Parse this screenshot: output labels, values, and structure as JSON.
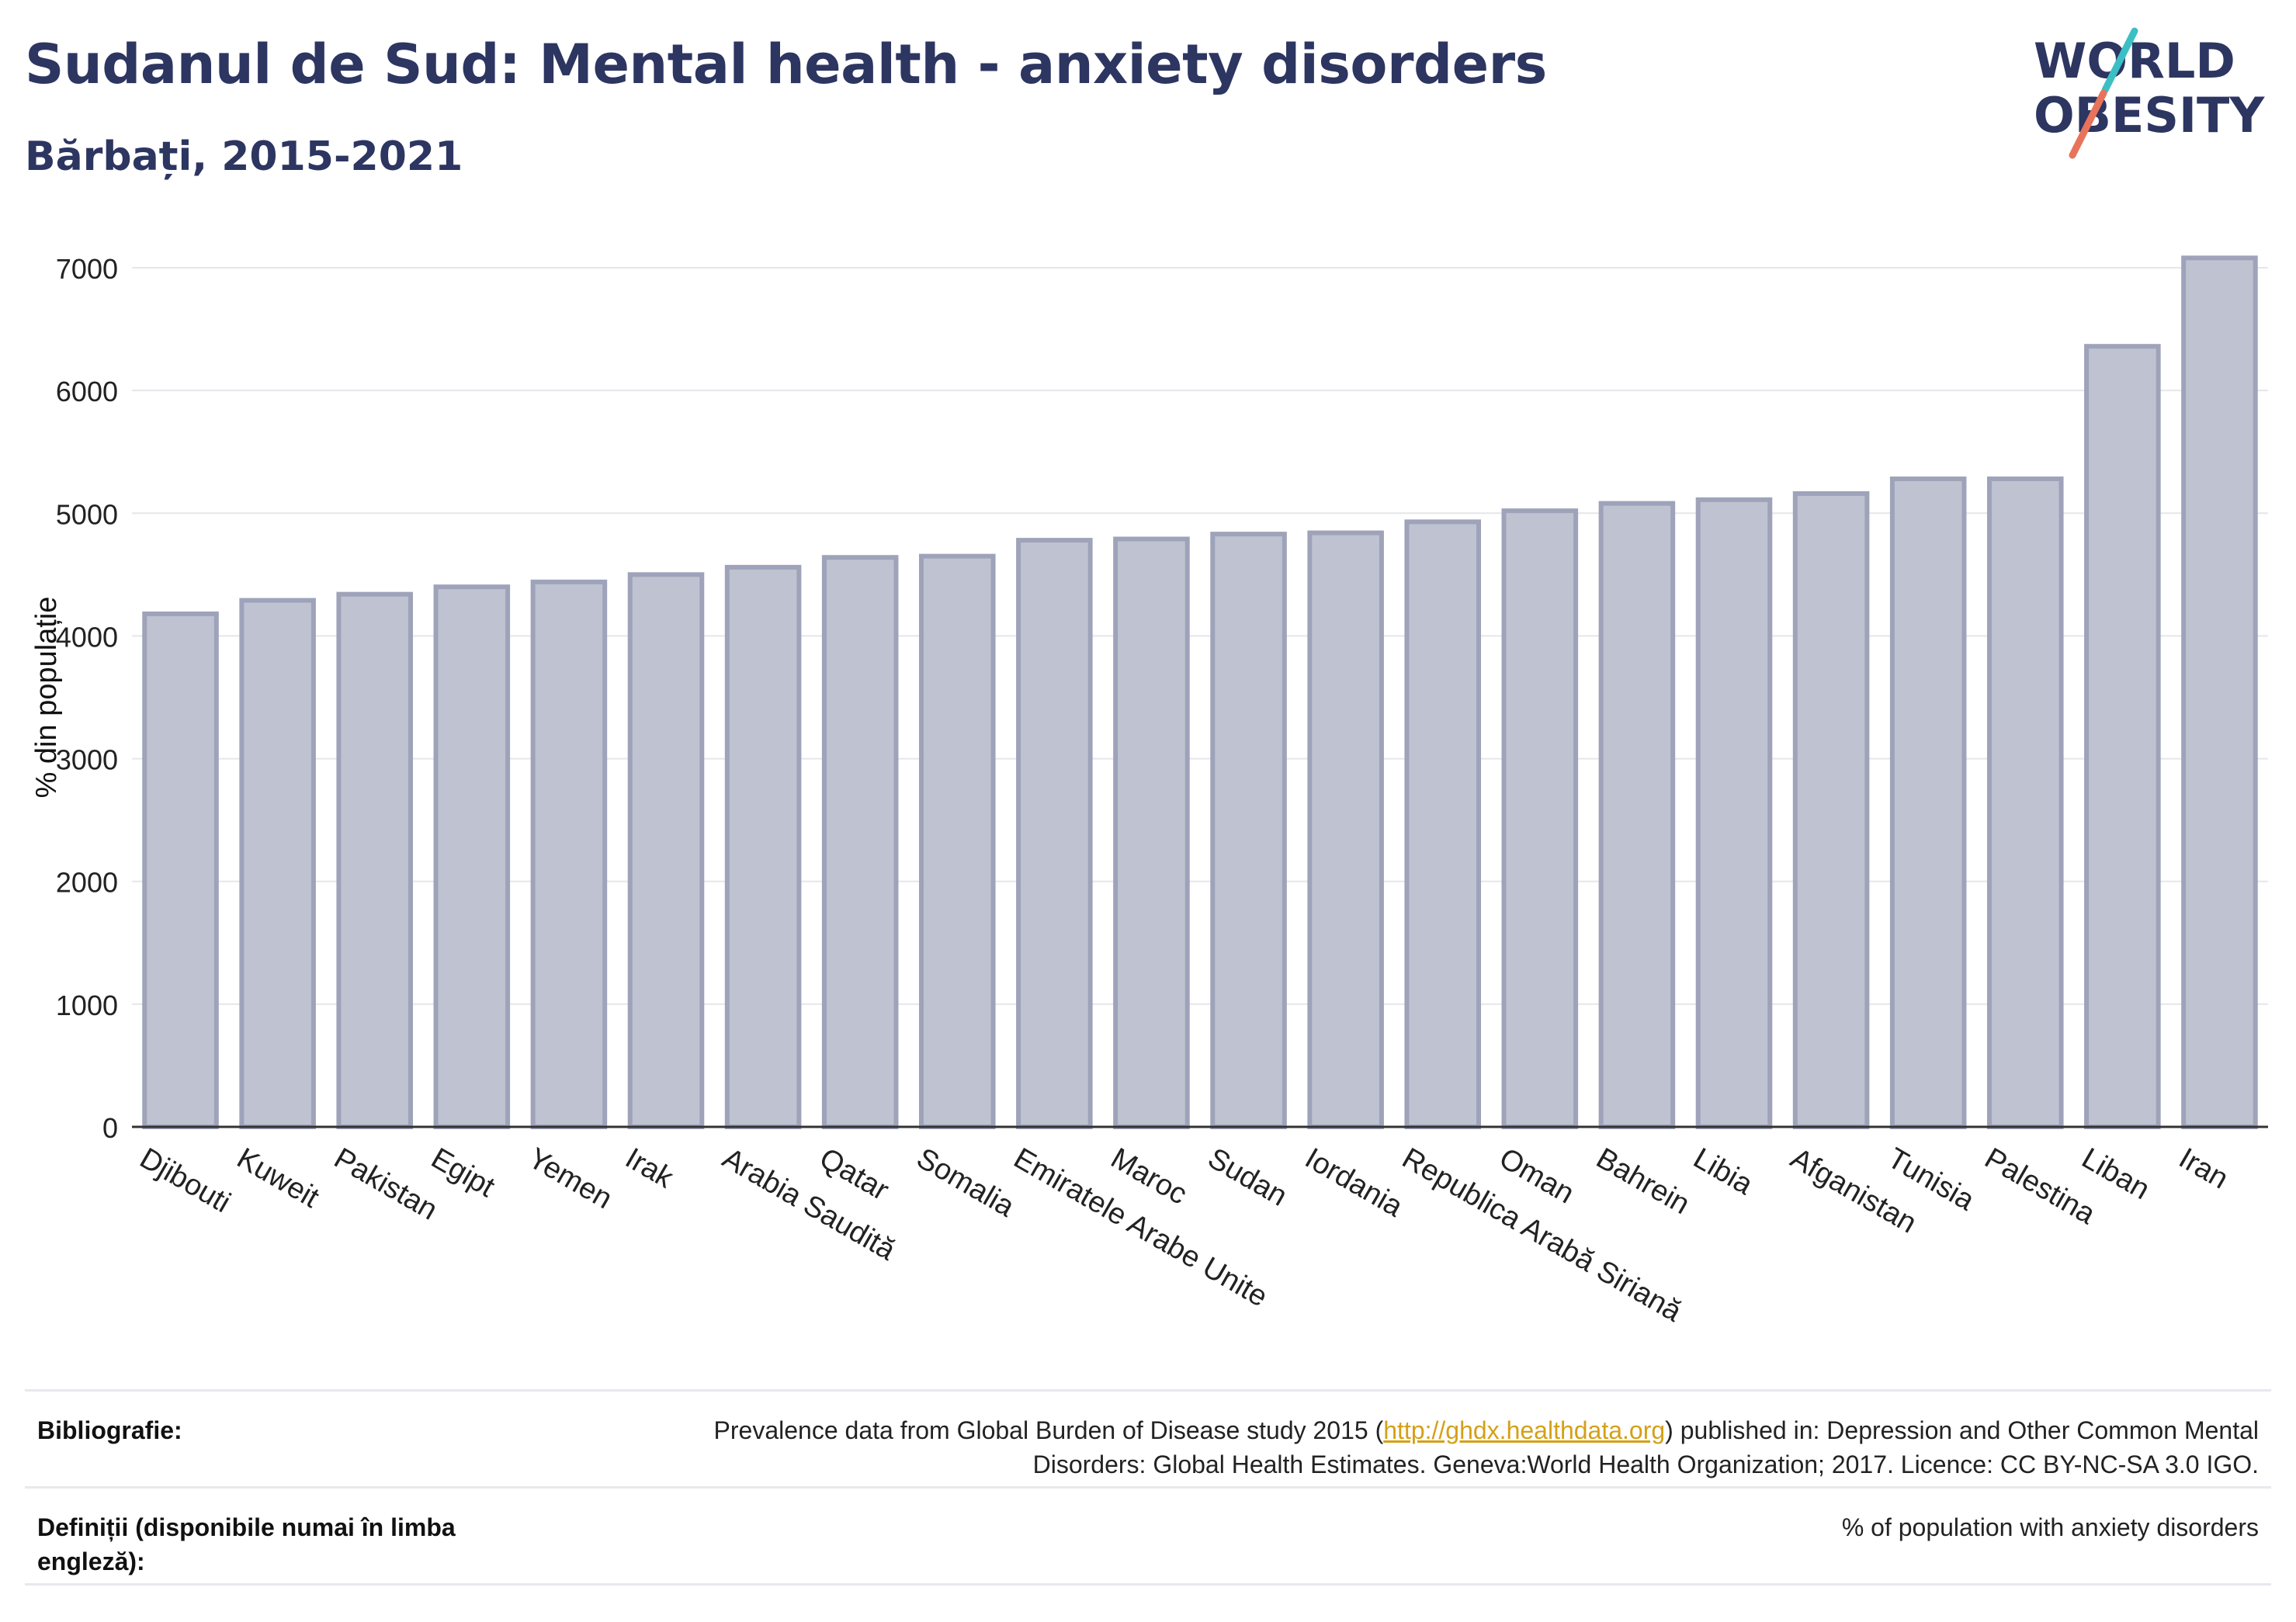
{
  "header": {
    "title": "Sudanul de Sud: Mental health - anxiety disorders",
    "subtitle": "Bărbați, 2015-2021"
  },
  "logo": {
    "line1": "WORLD",
    "line2": "OBESITY",
    "accent_teal": "#3bbfc4",
    "accent_coral": "#e8735a",
    "text_color": "#2d3561"
  },
  "chart_data": {
    "type": "bar",
    "title": "Sudanul de Sud: Mental health - anxiety disorders",
    "subtitle": "Bărbați, 2015-2021",
    "xlabel": "",
    "ylabel": "% din populație",
    "ylim": [
      0,
      7000
    ],
    "yticks": [
      0,
      1000,
      2000,
      3000,
      4000,
      5000,
      6000,
      7000
    ],
    "grid": true,
    "bar_color": "#bfc2d0",
    "bar_edge_color": "#9ea3ba",
    "categories": [
      "Djibouti",
      "Kuweit",
      "Pakistan",
      "Egipt",
      "Yemen",
      "Irak",
      "Arabia Saudită",
      "Qatar",
      "Somalia",
      "Emiratele Arabe Unite",
      "Maroc",
      "Sudan",
      "Iordania",
      "Republica Arabă Siriană",
      "Oman",
      "Bahrein",
      "Libia",
      "Afganistan",
      "Tunisia",
      "Palestina",
      "Liban",
      "Iran"
    ],
    "values": [
      4180,
      4290,
      4340,
      4400,
      4440,
      4500,
      4560,
      4640,
      4650,
      4780,
      4790,
      4830,
      4840,
      4930,
      5020,
      5080,
      5110,
      5160,
      5280,
      5280,
      6360,
      7080
    ]
  },
  "footer": {
    "bibliography_label": "Bibliografie:",
    "bibliography_before": "Prevalence data from Global Burden of Disease study 2015 (",
    "bibliography_link": "http://ghdx.healthdata.org",
    "bibliography_after": ") published in: Depression and Other Common Mental Disorders: Global Health Estimates. Geneva:World Health Organization; 2017. Licence: CC BY-NC-SA 3.0 IGO.",
    "definitions_label": "Definiții (disponibile numai în limba engleză):",
    "definitions_text": "% of population with anxiety disorders"
  }
}
